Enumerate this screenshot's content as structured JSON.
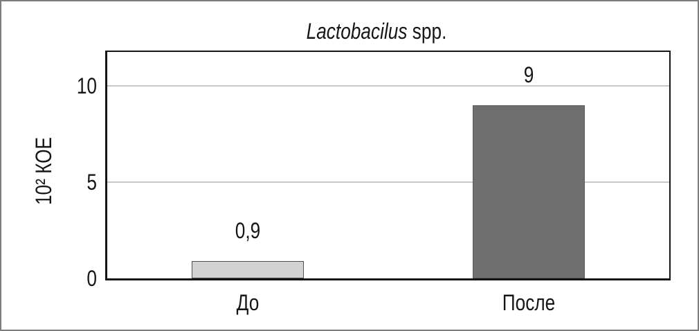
{
  "window": {
    "background": "#ffffff",
    "border_color": "#7c7c7c"
  },
  "chart_data": {
    "type": "bar",
    "title": {
      "italic_part": "Lactobacilus",
      "regular_part": " spp."
    },
    "categories": [
      "До",
      "После"
    ],
    "values": [
      0.9,
      9
    ],
    "value_labels": [
      "0,9",
      "9"
    ],
    "xlabel": "",
    "ylabel": "10² КОЕ",
    "yticks": [
      0,
      5,
      10
    ],
    "ylim": [
      0,
      11.75
    ],
    "gridlines_at": [
      5,
      10
    ],
    "legend_position": "none",
    "grid": "horizontal",
    "bar_style": [
      {
        "fill": "#d2d2d2",
        "border": "#4d4d4d"
      },
      {
        "fill": "#6e6e6e",
        "border": "#5c5c5c"
      }
    ],
    "gridline_color": "#c7c7c7",
    "axis_frame_color": "#141414"
  }
}
